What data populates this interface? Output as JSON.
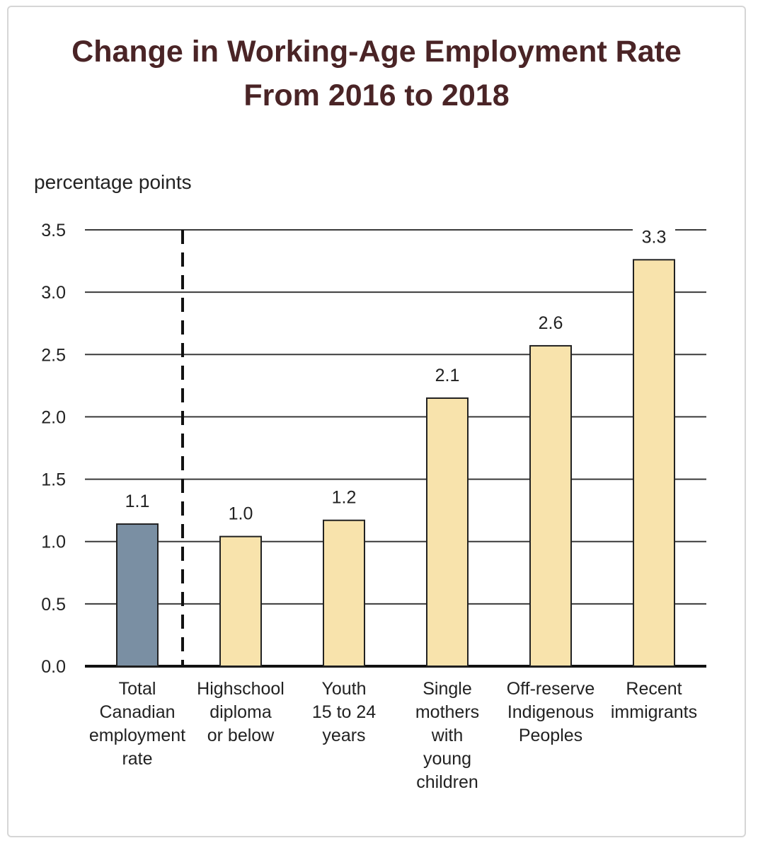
{
  "chart_data": {
    "type": "bar",
    "title": [
      "Change in Working-Age Employment Rate",
      "From 2016 to 2018"
    ],
    "ylabel": "percentage points",
    "xlabel": "",
    "ylim": [
      0,
      3.5
    ],
    "yticks": [
      "0.0",
      "0.5",
      "1.0",
      "1.5",
      "2.0",
      "2.5",
      "3.0",
      "3.5"
    ],
    "categories": [
      [
        "Total",
        "Canadian",
        "employment",
        "rate"
      ],
      [
        "Highschool",
        "diploma",
        "or below"
      ],
      [
        "Youth",
        "15 to 24",
        "years"
      ],
      [
        "Single",
        "mothers",
        "with",
        "young",
        "children"
      ],
      [
        "Off-reserve",
        "Indigenous",
        "Peoples"
      ],
      [
        "Recent",
        "immigrants"
      ]
    ],
    "values": [
      1.14,
      1.04,
      1.17,
      2.15,
      2.57,
      3.26
    ],
    "data_labels": [
      "1.1",
      "1.0",
      "1.2",
      "2.1",
      "2.6",
      "3.3"
    ],
    "colors": {
      "total": "#7a8fa3",
      "group": "#f8e3ac",
      "title": "#4a2426"
    },
    "grid": true,
    "separator": "dashed line between total and groups"
  }
}
